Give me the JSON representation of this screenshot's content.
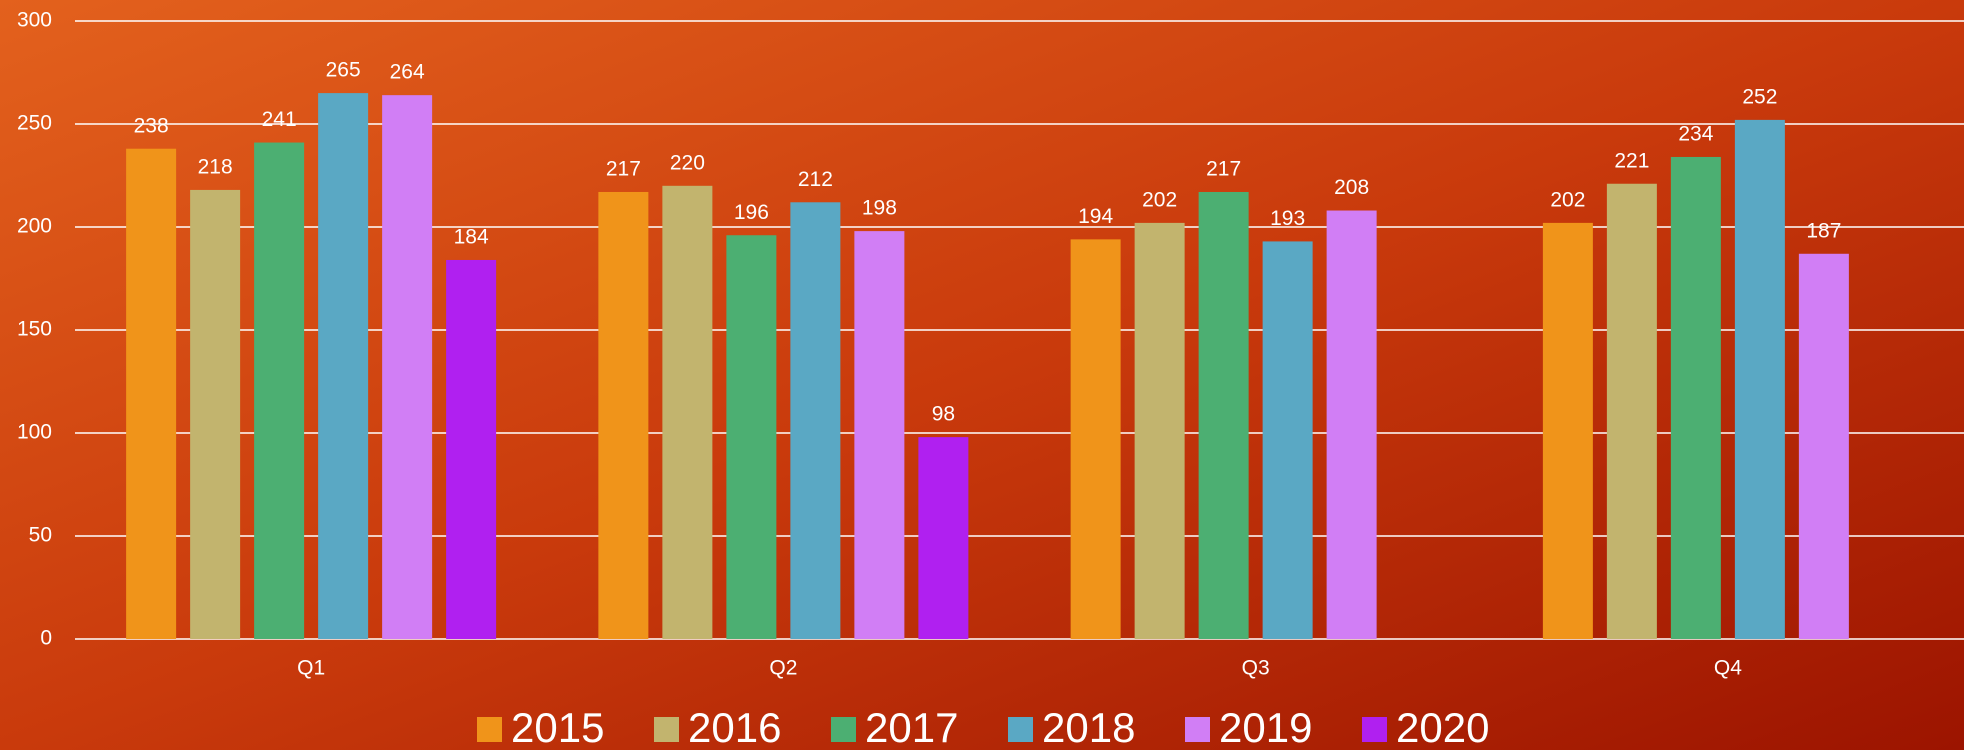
{
  "chart_data": {
    "type": "bar",
    "categories": [
      "Q1",
      "Q2",
      "Q3",
      "Q4"
    ],
    "series": [
      {
        "name": "2015",
        "color": "#f0941a",
        "values": [
          238,
          217,
          194,
          202
        ]
      },
      {
        "name": "2016",
        "color": "#c2b46e",
        "values": [
          218,
          220,
          202,
          221
        ]
      },
      {
        "name": "2017",
        "color": "#4caf72",
        "values": [
          241,
          196,
          217,
          234
        ]
      },
      {
        "name": "2018",
        "color": "#5aa8c4",
        "values": [
          265,
          212,
          193,
          252
        ]
      },
      {
        "name": "2019",
        "color": "#d17ef5",
        "values": [
          264,
          198,
          208,
          187
        ]
      },
      {
        "name": "2020",
        "color": "#b020f0",
        "values": [
          184,
          98,
          null,
          null
        ]
      }
    ],
    "ylim": [
      0,
      300
    ],
    "yticks": [
      0,
      50,
      100,
      150,
      200,
      250,
      300
    ],
    "grid": true,
    "legend": "bottom"
  }
}
